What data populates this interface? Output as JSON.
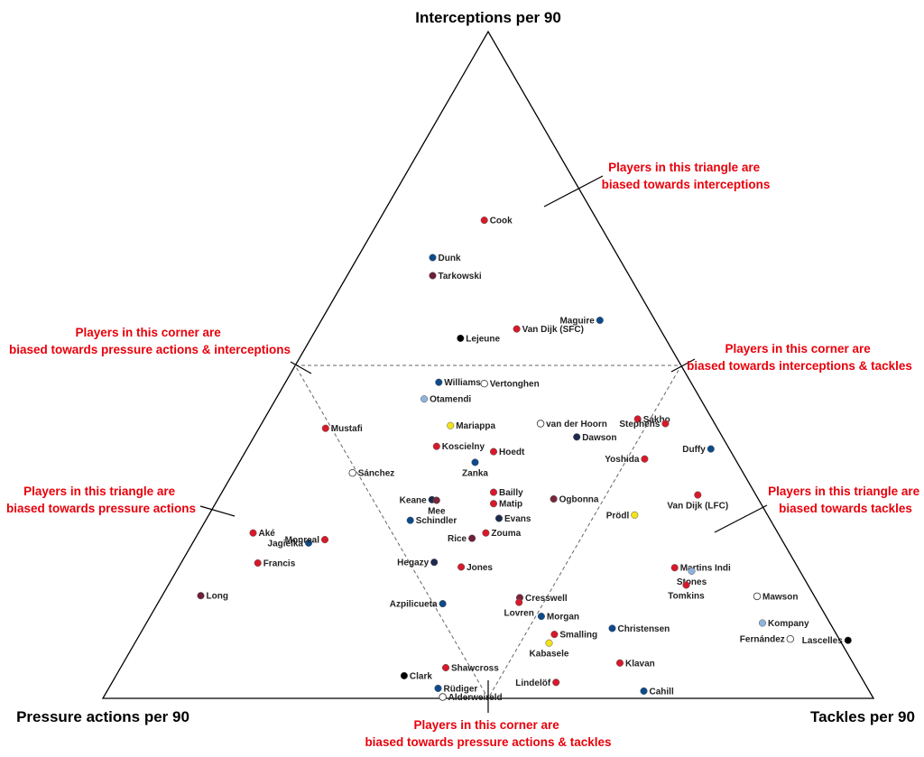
{
  "chart_data": {
    "type": "scatter",
    "subtype": "ternary",
    "axes": {
      "top": "Interceptions per 90",
      "left": "Pressure actions per 90",
      "right": "Tackles per 90"
    },
    "colors": {
      "red": "#d7192a",
      "blue": "#0d4a8c",
      "navy": "#1b2a4e",
      "maroon": "#6e1f3b",
      "claret": "#7a263a",
      "lightblue": "#8fb3dd",
      "yellow": "#f2e21a",
      "white": "#ffffff",
      "black": "#000000"
    },
    "annotations": {
      "top_triangle": [
        "Players in this triangle are",
        "biased towards interceptions"
      ],
      "left_triangle": [
        "Players in this triangle are",
        "biased towards pressure actions"
      ],
      "right_triangle": [
        "Players in this triangle are",
        "biased towards tackles"
      ],
      "corner_pi": [
        "Players in this corner are",
        "biased towards pressure actions & interceptions"
      ],
      "corner_it": [
        "Players in this corner are",
        "biased towards interceptions & tackles"
      ],
      "corner_pt": [
        "Players in this corner are",
        "biased towards pressure actions & tackles"
      ]
    },
    "points": [
      {
        "name": "Cook",
        "x": 0.495,
        "y": 0.717,
        "color": "red",
        "label_side": "right"
      },
      {
        "name": "Dunk",
        "x": 0.428,
        "y": 0.661,
        "color": "blue",
        "label_side": "right"
      },
      {
        "name": "Tarkowski",
        "x": 0.428,
        "y": 0.634,
        "color": "maroon",
        "label_side": "right"
      },
      {
        "name": "Maguire",
        "x": 0.645,
        "y": 0.567,
        "color": "blue",
        "label_side": "left"
      },
      {
        "name": "Van Dijk (SFC)",
        "x": 0.537,
        "y": 0.554,
        "color": "red",
        "label_side": "right"
      },
      {
        "name": "Lejeune",
        "x": 0.464,
        "y": 0.54,
        "color": "black",
        "label_side": "right"
      },
      {
        "name": "Williams",
        "x": 0.436,
        "y": 0.474,
        "color": "blue",
        "label_side": "right"
      },
      {
        "name": "Vertonghen",
        "x": 0.495,
        "y": 0.472,
        "color": "white",
        "label_side": "right"
      },
      {
        "name": "Otamendi",
        "x": 0.417,
        "y": 0.449,
        "color": "lightblue",
        "label_side": "right"
      },
      {
        "name": "Mustafi",
        "x": 0.289,
        "y": 0.405,
        "color": "red",
        "label_side": "right"
      },
      {
        "name": "Mariappa",
        "x": 0.451,
        "y": 0.409,
        "color": "yellow",
        "label_side": "right"
      },
      {
        "name": "van der Hoorn",
        "x": 0.568,
        "y": 0.412,
        "color": "white",
        "label_side": "right"
      },
      {
        "name": "Sakho",
        "x": 0.694,
        "y": 0.419,
        "color": "red",
        "label_side": "right"
      },
      {
        "name": "Stephens",
        "x": 0.73,
        "y": 0.412,
        "color": "red",
        "label_side": "left"
      },
      {
        "name": "Dawson",
        "x": 0.615,
        "y": 0.392,
        "color": "navy",
        "label_side": "right"
      },
      {
        "name": "Koscielny",
        "x": 0.433,
        "y": 0.378,
        "color": "red",
        "label_side": "right"
      },
      {
        "name": "Hoedt",
        "x": 0.507,
        "y": 0.37,
        "color": "red",
        "label_side": "right"
      },
      {
        "name": "Yoshida",
        "x": 0.703,
        "y": 0.359,
        "color": "red",
        "label_side": "left"
      },
      {
        "name": "Duffy",
        "x": 0.789,
        "y": 0.374,
        "color": "blue",
        "label_side": "left"
      },
      {
        "name": "Zanka",
        "x": 0.483,
        "y": 0.354,
        "color": "blue",
        "label_side": "below"
      },
      {
        "name": "Sánchez",
        "x": 0.324,
        "y": 0.338,
        "color": "white",
        "label_side": "right"
      },
      {
        "name": "Bailly",
        "x": 0.507,
        "y": 0.309,
        "color": "red",
        "label_side": "right"
      },
      {
        "name": "Ogbonna",
        "x": 0.585,
        "y": 0.299,
        "color": "claret",
        "label_side": "right"
      },
      {
        "name": "Van Dijk (LFC)",
        "x": 0.772,
        "y": 0.305,
        "color": "red",
        "label_side": "below"
      },
      {
        "name": "Keane",
        "x": 0.427,
        "y": 0.298,
        "color": "navy",
        "label_side": "left"
      },
      {
        "name": "Mee",
        "x": 0.433,
        "y": 0.297,
        "color": "claret",
        "label_side": "below"
      },
      {
        "name": "Matip",
        "x": 0.507,
        "y": 0.292,
        "color": "red",
        "label_side": "right"
      },
      {
        "name": "Prödl",
        "x": 0.69,
        "y": 0.275,
        "color": "yellow",
        "label_side": "left"
      },
      {
        "name": "Schindler",
        "x": 0.399,
        "y": 0.267,
        "color": "blue",
        "label_side": "right"
      },
      {
        "name": "Evans",
        "x": 0.514,
        "y": 0.27,
        "color": "navy",
        "label_side": "right"
      },
      {
        "name": "Aké",
        "x": 0.195,
        "y": 0.248,
        "color": "red",
        "label_side": "right"
      },
      {
        "name": "Zouma",
        "x": 0.497,
        "y": 0.248,
        "color": "red",
        "label_side": "right"
      },
      {
        "name": "Rice",
        "x": 0.479,
        "y": 0.24,
        "color": "maroon",
        "label_side": "left"
      },
      {
        "name": "Jagielka",
        "x": 0.267,
        "y": 0.233,
        "color": "blue",
        "label_side": "left"
      },
      {
        "name": "Monreal",
        "x": 0.288,
        "y": 0.238,
        "color": "red",
        "label_side": "left"
      },
      {
        "name": "Francis",
        "x": 0.201,
        "y": 0.203,
        "color": "red",
        "label_side": "right"
      },
      {
        "name": "Hegazy",
        "x": 0.43,
        "y": 0.204,
        "color": "navy",
        "label_side": "left"
      },
      {
        "name": "Jones",
        "x": 0.465,
        "y": 0.197,
        "color": "red",
        "label_side": "right"
      },
      {
        "name": "Martins Indi",
        "x": 0.742,
        "y": 0.196,
        "color": "red",
        "label_side": "right"
      },
      {
        "name": "Stones",
        "x": 0.764,
        "y": 0.191,
        "color": "lightblue",
        "label_side": "below"
      },
      {
        "name": "Tomkins",
        "x": 0.757,
        "y": 0.17,
        "color": "red",
        "label_side": "below"
      },
      {
        "name": "Long",
        "x": 0.127,
        "y": 0.154,
        "color": "maroon",
        "label_side": "right"
      },
      {
        "name": "Mawson",
        "x": 0.849,
        "y": 0.153,
        "color": "white",
        "label_side": "right"
      },
      {
        "name": "Cresswell",
        "x": 0.541,
        "y": 0.151,
        "color": "claret",
        "label_side": "right"
      },
      {
        "name": "Lovren",
        "x": 0.54,
        "y": 0.144,
        "color": "red",
        "label_side": "below"
      },
      {
        "name": "Azpilicueta",
        "x": 0.441,
        "y": 0.142,
        "color": "blue",
        "label_side": "left"
      },
      {
        "name": "Morgan",
        "x": 0.569,
        "y": 0.123,
        "color": "blue",
        "label_side": "right"
      },
      {
        "name": "Kompany",
        "x": 0.856,
        "y": 0.113,
        "color": "lightblue",
        "label_side": "right"
      },
      {
        "name": "Christensen",
        "x": 0.661,
        "y": 0.105,
        "color": "blue",
        "label_side": "right"
      },
      {
        "name": "Smalling",
        "x": 0.586,
        "y": 0.096,
        "color": "red",
        "label_side": "right"
      },
      {
        "name": "Fernández",
        "x": 0.892,
        "y": 0.089,
        "color": "white",
        "label_side": "left"
      },
      {
        "name": "Lascelles",
        "x": 0.967,
        "y": 0.087,
        "color": "black",
        "label_side": "left"
      },
      {
        "name": "Kabasele",
        "x": 0.579,
        "y": 0.083,
        "color": "yellow",
        "label_side": "below"
      },
      {
        "name": "Klavan",
        "x": 0.671,
        "y": 0.053,
        "color": "red",
        "label_side": "right"
      },
      {
        "name": "Shawcross",
        "x": 0.445,
        "y": 0.046,
        "color": "red",
        "label_side": "right"
      },
      {
        "name": "Clark",
        "x": 0.391,
        "y": 0.034,
        "color": "black",
        "label_side": "right"
      },
      {
        "name": "Lindelöf",
        "x": 0.588,
        "y": 0.024,
        "color": "red",
        "label_side": "left"
      },
      {
        "name": "Rüdiger",
        "x": 0.435,
        "y": 0.015,
        "color": "blue",
        "label_side": "right"
      },
      {
        "name": "Cahill",
        "x": 0.702,
        "y": 0.011,
        "color": "blue",
        "label_side": "right"
      },
      {
        "name": "Alderweireld",
        "x": 0.441,
        "y": 0.002,
        "color": "white",
        "label_side": "right"
      }
    ]
  }
}
